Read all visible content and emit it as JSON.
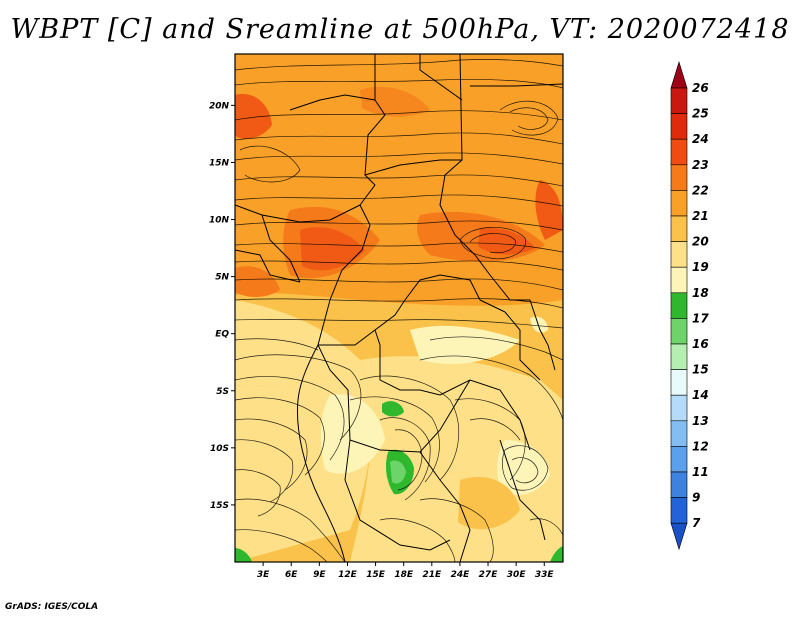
{
  "title": "WBPT [C] and Sreamline at 500hPa, VT: 2020072418",
  "credit": "GrADS: IGES/COLA",
  "map": {
    "lat_labels": [
      "20N",
      "15N",
      "10N",
      "5N",
      "EQ",
      "5S",
      "10S",
      "15S"
    ],
    "lat_values": [
      20,
      15,
      10,
      5,
      0,
      -5,
      -10,
      -15
    ],
    "lon_labels": [
      "3E",
      "6E",
      "9E",
      "12E",
      "15E",
      "18E",
      "21E",
      "24E",
      "27E",
      "30E",
      "33E"
    ],
    "lon_values": [
      3,
      6,
      9,
      12,
      15,
      18,
      21,
      24,
      27,
      30,
      33
    ],
    "lon_range": [
      0,
      35
    ],
    "lat_range": [
      -20,
      24.5
    ]
  },
  "colorbar": {
    "levels": [
      "26",
      "25",
      "24",
      "23",
      "22",
      "21",
      "20",
      "19",
      "18",
      "17",
      "16",
      "15",
      "14",
      "13",
      "12",
      "11",
      "9",
      "7"
    ],
    "colors": [
      "#9e0016",
      "#c81810",
      "#e02a0c",
      "#f04c12",
      "#f57a1a",
      "#f8a028",
      "#fac24a",
      "#fde088",
      "#fdf5b8",
      "#2fb82e",
      "#6dd46a",
      "#b4eeb0",
      "#e8fafa",
      "#b4dcfa",
      "#82bef2",
      "#5aa0ec",
      "#3c82e0",
      "#2264d8",
      "#1a50c8"
    ]
  }
}
